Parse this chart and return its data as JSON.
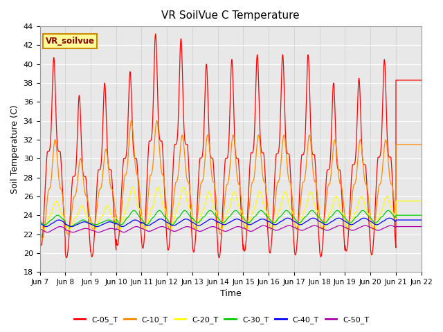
{
  "title": "VR SoilVue C Temperature",
  "ylabel": "Soil Temperature (C)",
  "xlabel": "Time",
  "ylim": [
    18,
    44
  ],
  "yticks": [
    18,
    20,
    22,
    24,
    26,
    28,
    30,
    32,
    34,
    36,
    38,
    40,
    42,
    44
  ],
  "plot_bg_color": "#e8e8e8",
  "series": [
    {
      "name": "C-05_T",
      "color": "#ff0000",
      "base": 21.2,
      "amp_scale": 1.0,
      "daily_peaks": [
        40.7,
        20.8,
        36.7,
        19.5,
        38.0,
        19.6,
        39.2,
        20.8,
        43.2,
        20.5,
        42.7,
        20.3,
        40.0,
        20.1,
        40.5,
        19.5,
        41.0,
        20.2,
        41.0,
        20.0,
        41.0,
        19.8,
        38.0,
        19.6,
        38.5,
        20.2,
        40.5,
        19.8,
        38.3
      ],
      "phase": 0.55
    },
    {
      "name": "C-10_T",
      "color": "#ff8800",
      "base": 22.0,
      "amp_scale": 0.5,
      "daily_peaks": [
        32.0,
        21.5,
        30.0,
        22.0,
        31.0,
        22.5,
        34.0,
        22.5,
        34.0,
        22.5,
        32.5,
        22.5,
        32.5,
        22.5,
        32.5,
        22.0,
        32.5,
        22.5,
        32.5,
        22.5,
        32.5,
        22.5,
        32.0,
        22.5,
        32.0,
        22.5,
        32.0,
        22.5,
        31.5
      ],
      "phase": 0.6
    },
    {
      "name": "C-20_T",
      "color": "#ffff00",
      "base": 22.5,
      "amp_scale": 0.25,
      "daily_peaks": [
        25.5,
        22.5,
        25.0,
        22.5,
        25.0,
        22.5,
        27.0,
        22.5,
        27.0,
        22.5,
        27.0,
        22.5,
        26.5,
        22.5,
        26.5,
        22.5,
        26.5,
        22.5,
        26.5,
        22.5,
        26.5,
        22.5,
        26.0,
        22.5,
        26.0,
        22.5,
        26.0,
        22.5,
        25.5
      ],
      "phase": 0.65
    },
    {
      "name": "C-30_T",
      "color": "#00cc00",
      "base": 23.2,
      "amp_scale": 0.1,
      "daily_peaks": [
        24.0,
        23.0,
        23.5,
        22.8,
        23.5,
        23.0,
        24.5,
        23.0,
        24.5,
        23.0,
        24.5,
        23.0,
        24.5,
        23.2,
        24.5,
        23.2,
        24.5,
        23.2,
        24.5,
        23.2,
        24.5,
        23.2,
        24.5,
        23.2,
        24.5,
        23.2,
        24.5,
        23.2,
        24.0
      ],
      "phase": 0.7
    },
    {
      "name": "C-40_T",
      "color": "#0000ff",
      "base": 23.1,
      "amp_scale": 0.05,
      "daily_peaks": [
        23.5,
        22.8,
        23.3,
        22.8,
        23.3,
        22.8,
        23.5,
        22.8,
        23.6,
        22.9,
        23.6,
        22.9,
        23.6,
        22.9,
        23.6,
        23.0,
        23.6,
        23.0,
        23.7,
        23.0,
        23.7,
        23.0,
        23.7,
        23.0,
        23.7,
        23.0,
        23.7,
        23.0,
        23.5
      ],
      "phase": 0.75
    },
    {
      "name": "C-50_T",
      "color": "#aa00aa",
      "base": 22.5,
      "amp_scale": 0.04,
      "daily_peaks": [
        22.8,
        22.2,
        22.6,
        22.2,
        22.6,
        22.2,
        22.8,
        22.2,
        22.8,
        22.3,
        22.8,
        22.3,
        22.8,
        22.3,
        22.8,
        22.3,
        22.9,
        22.3,
        22.9,
        22.4,
        22.9,
        22.4,
        22.9,
        22.4,
        22.9,
        22.4,
        22.9,
        22.4,
        22.8
      ],
      "phase": 0.8
    }
  ],
  "xticklabels": [
    "Jun 7",
    "Jun 8",
    "Jun 9",
    "Jun 10",
    "Jun 11",
    "Jun 12",
    "Jun 13",
    "Jun 14",
    "Jun 15",
    "Jun 16",
    "Jun 17",
    "Jun 18",
    "Jun 19",
    "Jun 20",
    "Jun 21",
    "Jun 22"
  ],
  "annotation_text": "VR_soilvue",
  "annotation_bg": "#ffff99",
  "annotation_border": "#cc8800",
  "days": 15
}
